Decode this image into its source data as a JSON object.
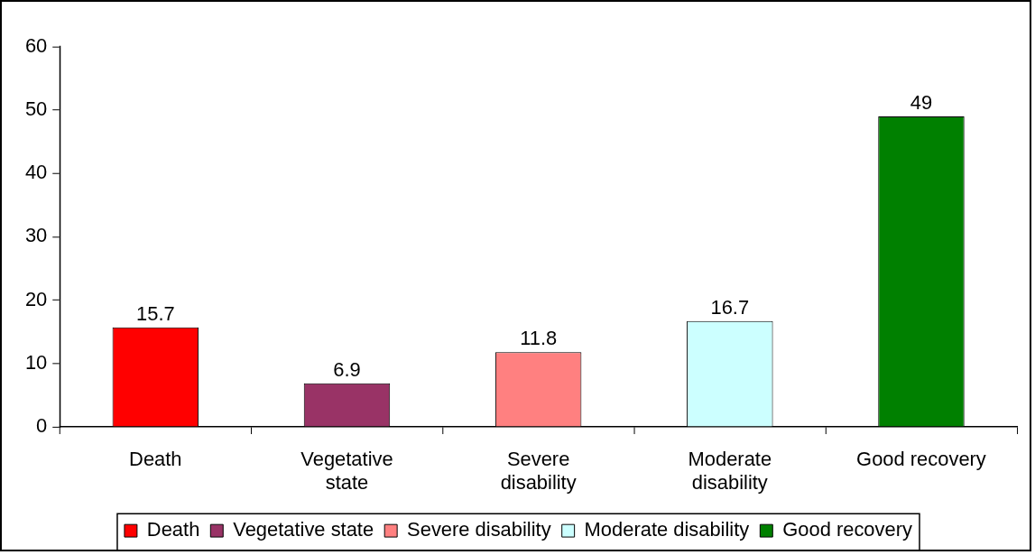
{
  "chart_data": {
    "type": "bar",
    "categories": [
      "Death",
      "Vegetative state",
      "Severe disability",
      "Moderate disability",
      "Good recovery"
    ],
    "series": [
      {
        "name": "Death",
        "color": "#ff0000",
        "values": [
          15.7,
          null,
          null,
          null,
          null
        ]
      },
      {
        "name": "Vegetative state",
        "color": "#993366",
        "values": [
          null,
          6.9,
          null,
          null,
          null
        ]
      },
      {
        "name": "Severe disability",
        "color": "#ff8080",
        "values": [
          null,
          null,
          11.8,
          null,
          null
        ]
      },
      {
        "name": "Moderate disability",
        "color": "#ccffff",
        "values": [
          null,
          null,
          null,
          16.7,
          null
        ]
      },
      {
        "name": "Good recovery",
        "color": "#008000",
        "values": [
          null,
          null,
          null,
          null,
          49
        ]
      }
    ],
    "ylim": [
      0,
      60
    ],
    "yticks": [
      0,
      10,
      20,
      30,
      40,
      50,
      60
    ],
    "grid": false,
    "legend": "bottom",
    "data_labels": true
  }
}
